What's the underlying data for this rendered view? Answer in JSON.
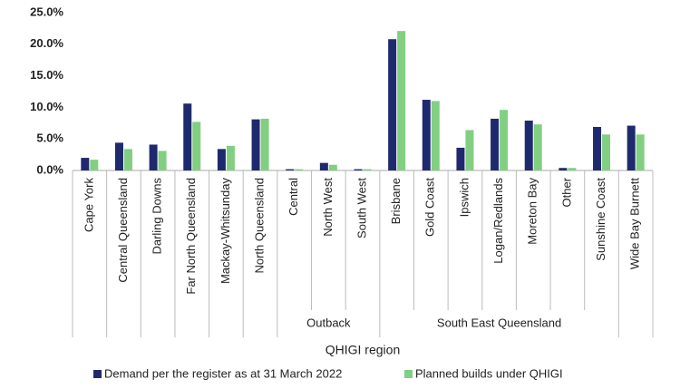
{
  "chart_data": {
    "type": "bar",
    "x_label": "QHIGI region",
    "categories": [
      "Cape York",
      "Central Queensland",
      "Darling Downs",
      "Far North Queensland",
      "Mackay-Whitsunday",
      "North Queensland",
      "Central",
      "North West",
      "South West",
      "Brisbane",
      "Gold Coast",
      "Ipswich",
      "Logan/Redlands",
      "Moreton Bay",
      "Other",
      "Sunshine Coast",
      "Wide Bay Burnett"
    ],
    "category_groups": [
      null,
      null,
      null,
      null,
      null,
      null,
      "Outback",
      "Outback",
      "Outback",
      "South East Queensland",
      "South East Queensland",
      "South East Queensland",
      "South East Queensland",
      "South East Queensland",
      "South East Queensland",
      "South East Queensland",
      null
    ],
    "series": [
      {
        "name": "Demand per the register as at 31 March 2022",
        "color": "#1f2a6e",
        "values": [
          2.0,
          4.4,
          4.1,
          10.6,
          3.4,
          8.1,
          0.2,
          1.2,
          0.2,
          20.8,
          11.2,
          3.6,
          8.2,
          7.9,
          0.4,
          6.9,
          7.1
        ]
      },
      {
        "name": "Planned builds under QHIGI",
        "color": "#82cf82",
        "values": [
          1.7,
          3.4,
          3.1,
          7.7,
          3.9,
          8.2,
          0.2,
          0.9,
          0.2,
          22.1,
          11.0,
          6.4,
          9.6,
          7.3,
          0.4,
          5.7,
          5.7
        ]
      }
    ],
    "ylim": [
      0,
      25
    ],
    "yticks": [
      {
        "value": 0,
        "label": "0.0%"
      },
      {
        "value": 5,
        "label": "5.0%"
      },
      {
        "value": 10,
        "label": "10.0%"
      },
      {
        "value": 15,
        "label": "15.0%"
      },
      {
        "value": 20,
        "label": "20.0%"
      },
      {
        "value": 25,
        "label": "25.0%"
      }
    ],
    "legend": "bottom"
  }
}
